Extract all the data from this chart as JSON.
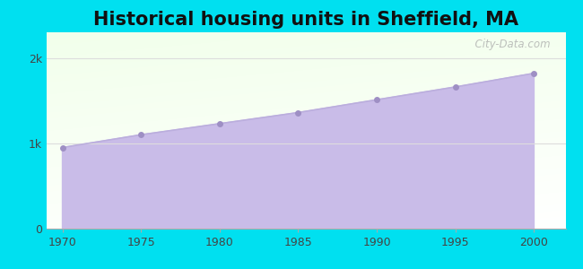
{
  "title": "Historical housing units in Sheffield, MA",
  "years": [
    1970,
    1975,
    1980,
    1985,
    1990,
    1995,
    2000
  ],
  "values": [
    950,
    1100,
    1230,
    1360,
    1510,
    1660,
    1820
  ],
  "line_color": "#bbaedd",
  "fill_color": "#c9bce8",
  "fill_alpha": 1.0,
  "marker_color": "#9e8fc4",
  "marker_size": 5,
  "bg_outer": "#00e0f0",
  "grid_color": "#dddddd",
  "title_fontsize": 15,
  "tick_fontsize": 9,
  "ytick_labels": [
    "0",
    "1k",
    "2k"
  ],
  "ytick_values": [
    0,
    1000,
    2000
  ],
  "xlim": [
    1969,
    2002
  ],
  "ylim": [
    0,
    2300
  ],
  "watermark": "  City-Data.com"
}
